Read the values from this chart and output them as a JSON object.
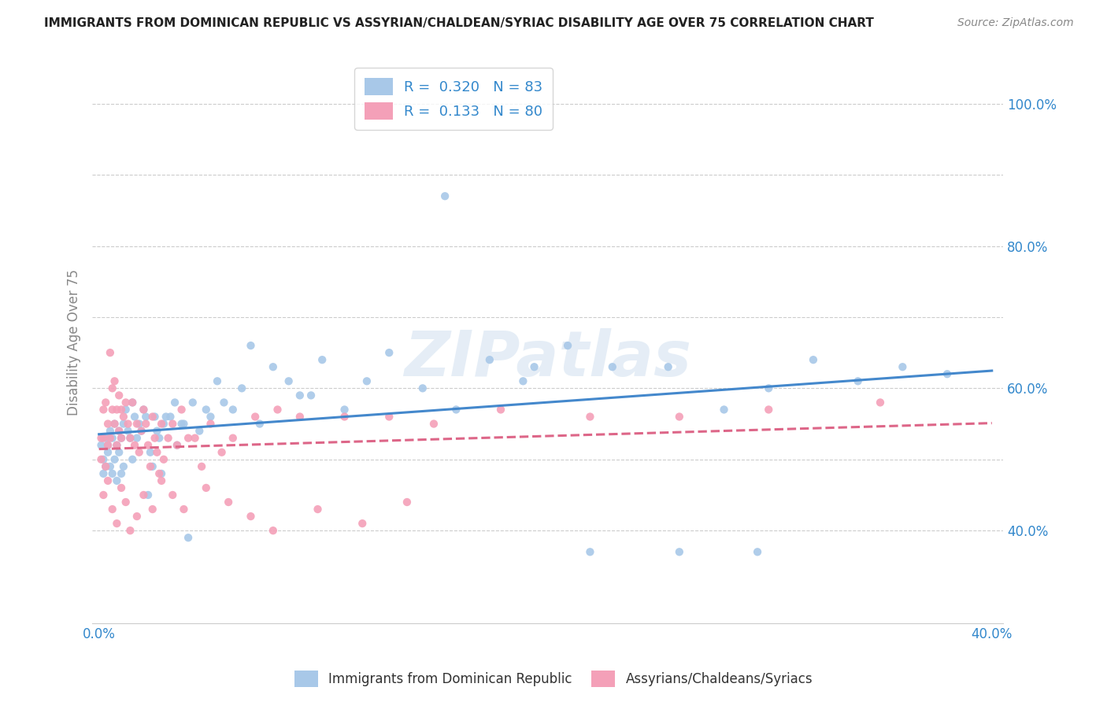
{
  "title": "IMMIGRANTS FROM DOMINICAN REPUBLIC VS ASSYRIAN/CHALDEAN/SYRIAC DISABILITY AGE OVER 75 CORRELATION CHART",
  "source": "Source: ZipAtlas.com",
  "ylabel": "Disability Age Over 75",
  "ytick_labels": [
    "40.0%",
    "",
    "60.0%",
    "",
    "80.0%",
    "",
    "100.0%"
  ],
  "ytick_values": [
    0.4,
    0.5,
    0.6,
    0.7,
    0.8,
    0.9,
    1.0
  ],
  "xlim": [
    -0.003,
    0.405
  ],
  "ylim": [
    0.27,
    1.06
  ],
  "blue_R": "0.320",
  "blue_N": "83",
  "pink_R": "0.133",
  "pink_N": "80",
  "blue_color": "#a8c8e8",
  "pink_color": "#f4a0b8",
  "blue_line_color": "#4488cc",
  "pink_line_color": "#dd6688",
  "blue_scatter_x": [
    0.001,
    0.002,
    0.002,
    0.003,
    0.003,
    0.004,
    0.004,
    0.005,
    0.005,
    0.006,
    0.006,
    0.007,
    0.007,
    0.008,
    0.008,
    0.009,
    0.009,
    0.01,
    0.01,
    0.011,
    0.011,
    0.012,
    0.013,
    0.014,
    0.015,
    0.015,
    0.016,
    0.017,
    0.018,
    0.019,
    0.02,
    0.021,
    0.022,
    0.023,
    0.024,
    0.025,
    0.026,
    0.027,
    0.028,
    0.029,
    0.03,
    0.032,
    0.034,
    0.035,
    0.037,
    0.038,
    0.04,
    0.042,
    0.045,
    0.048,
    0.05,
    0.053,
    0.056,
    0.06,
    0.064,
    0.068,
    0.072,
    0.078,
    0.085,
    0.09,
    0.095,
    0.1,
    0.11,
    0.12,
    0.13,
    0.145,
    0.16,
    0.175,
    0.19,
    0.21,
    0.23,
    0.255,
    0.28,
    0.3,
    0.32,
    0.34,
    0.36,
    0.38,
    0.26,
    0.22,
    0.295,
    0.195,
    0.155
  ],
  "blue_scatter_y": [
    0.52,
    0.5,
    0.48,
    0.53,
    0.49,
    0.52,
    0.51,
    0.54,
    0.49,
    0.53,
    0.48,
    0.55,
    0.5,
    0.52,
    0.47,
    0.54,
    0.51,
    0.53,
    0.48,
    0.55,
    0.49,
    0.57,
    0.54,
    0.53,
    0.58,
    0.5,
    0.56,
    0.53,
    0.55,
    0.54,
    0.57,
    0.56,
    0.45,
    0.51,
    0.49,
    0.56,
    0.54,
    0.53,
    0.48,
    0.55,
    0.56,
    0.56,
    0.58,
    0.52,
    0.55,
    0.55,
    0.39,
    0.58,
    0.54,
    0.57,
    0.56,
    0.61,
    0.58,
    0.57,
    0.6,
    0.66,
    0.55,
    0.63,
    0.61,
    0.59,
    0.59,
    0.64,
    0.57,
    0.61,
    0.65,
    0.6,
    0.57,
    0.64,
    0.61,
    0.66,
    0.63,
    0.63,
    0.57,
    0.6,
    0.64,
    0.61,
    0.63,
    0.62,
    0.37,
    0.37,
    0.37,
    0.63,
    0.87
  ],
  "pink_scatter_x": [
    0.001,
    0.001,
    0.002,
    0.002,
    0.003,
    0.003,
    0.004,
    0.004,
    0.005,
    0.005,
    0.006,
    0.006,
    0.007,
    0.007,
    0.008,
    0.008,
    0.009,
    0.009,
    0.01,
    0.01,
    0.011,
    0.012,
    0.013,
    0.014,
    0.015,
    0.016,
    0.017,
    0.018,
    0.019,
    0.02,
    0.021,
    0.022,
    0.023,
    0.024,
    0.025,
    0.026,
    0.027,
    0.028,
    0.029,
    0.031,
    0.033,
    0.035,
    0.037,
    0.04,
    0.043,
    0.046,
    0.05,
    0.055,
    0.06,
    0.07,
    0.08,
    0.09,
    0.11,
    0.13,
    0.15,
    0.18,
    0.22,
    0.26,
    0.3,
    0.35,
    0.002,
    0.004,
    0.006,
    0.008,
    0.01,
    0.012,
    0.014,
    0.017,
    0.02,
    0.024,
    0.028,
    0.033,
    0.038,
    0.048,
    0.058,
    0.068,
    0.078,
    0.098,
    0.118,
    0.138
  ],
  "pink_scatter_y": [
    0.53,
    0.5,
    0.57,
    0.53,
    0.49,
    0.58,
    0.52,
    0.55,
    0.65,
    0.53,
    0.6,
    0.57,
    0.55,
    0.61,
    0.57,
    0.52,
    0.59,
    0.54,
    0.53,
    0.57,
    0.56,
    0.58,
    0.55,
    0.53,
    0.58,
    0.52,
    0.55,
    0.51,
    0.54,
    0.57,
    0.55,
    0.52,
    0.49,
    0.56,
    0.53,
    0.51,
    0.48,
    0.55,
    0.5,
    0.53,
    0.55,
    0.52,
    0.57,
    0.53,
    0.53,
    0.49,
    0.55,
    0.51,
    0.53,
    0.56,
    0.57,
    0.56,
    0.56,
    0.56,
    0.55,
    0.57,
    0.56,
    0.56,
    0.57,
    0.58,
    0.45,
    0.47,
    0.43,
    0.41,
    0.46,
    0.44,
    0.4,
    0.42,
    0.45,
    0.43,
    0.47,
    0.45,
    0.43,
    0.46,
    0.44,
    0.42,
    0.4,
    0.43,
    0.41,
    0.44
  ],
  "watermark": "ZIPatlas",
  "legend_label_blue": "Immigrants from Dominican Republic",
  "legend_label_pink": "Assyrians/Chaldeans/Syriacs"
}
